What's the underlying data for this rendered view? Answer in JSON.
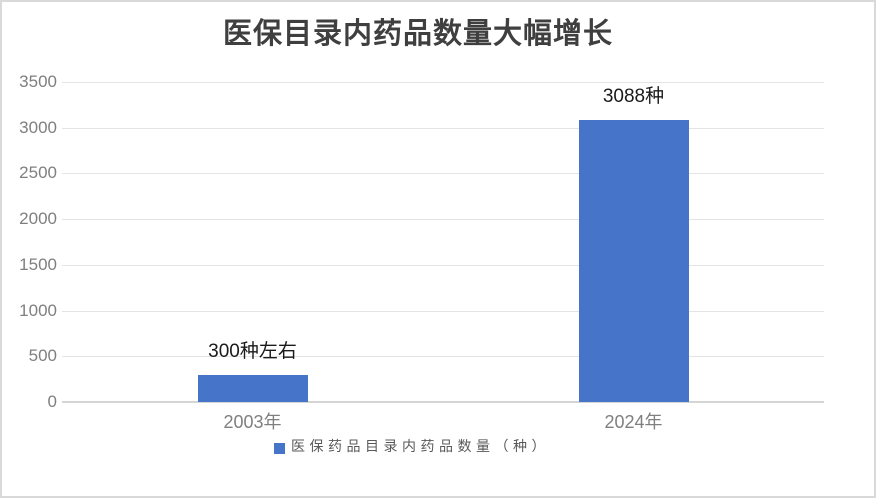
{
  "chart_data": {
    "type": "bar",
    "title": "医保目录内药品数量大幅增长",
    "categories": [
      "2003年",
      "2024年"
    ],
    "series": [
      {
        "name": "医保药品目录内药品数量（种）",
        "values": [
          300,
          3088
        ]
      }
    ],
    "bar_labels": [
      "300种左右",
      "3088种"
    ],
    "xlabel": "",
    "ylabel": "",
    "ylim": [
      0,
      3500
    ],
    "yticks": [
      0,
      500,
      1000,
      1500,
      2000,
      2500,
      3000,
      3500
    ],
    "grid": true,
    "legend_position": "bottom"
  },
  "legend": {
    "label": "医保药品目录内药品数量（种）"
  },
  "colors": {
    "bar": "#4674C9",
    "title_text": "#3F3F3F",
    "axis_text": "#7F7F7F",
    "value_text": "#1A1A1A",
    "legend_text": "#595959",
    "gridline": "#E4E4E4",
    "axis_line": "#D5D5D5",
    "border": "#D9D9D9"
  }
}
